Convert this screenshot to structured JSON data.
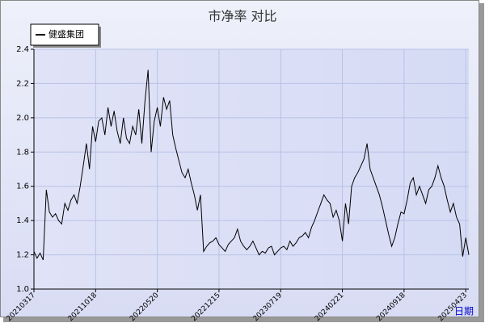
{
  "chart_data": {
    "type": "line",
    "title": "市净率 对比",
    "x_label": "日期",
    "categories": [
      "20210317",
      null,
      null,
      null,
      null,
      null,
      null,
      null,
      null,
      null,
      null,
      null,
      null,
      null,
      null,
      null,
      null,
      null,
      null,
      null,
      "20211018",
      null,
      null,
      null,
      null,
      null,
      null,
      null,
      null,
      null,
      null,
      null,
      null,
      null,
      null,
      null,
      null,
      null,
      null,
      null,
      "20220520",
      null,
      null,
      null,
      null,
      null,
      null,
      null,
      null,
      null,
      null,
      null,
      null,
      null,
      null,
      null,
      null,
      null,
      null,
      null,
      "20221215",
      null,
      null,
      null,
      null,
      null,
      null,
      null,
      null,
      null,
      null,
      null,
      null,
      null,
      null,
      null,
      null,
      null,
      null,
      null,
      "20230719",
      null,
      null,
      null,
      null,
      null,
      null,
      null,
      null,
      null,
      null,
      null,
      null,
      null,
      null,
      null,
      null,
      null,
      null,
      null,
      "20240221",
      null,
      null,
      null,
      null,
      null,
      null,
      null,
      null,
      null,
      null,
      null,
      null,
      null,
      null,
      null,
      null,
      null,
      null,
      null,
      "20240918",
      null,
      null,
      null,
      null,
      null,
      null,
      null,
      null,
      null,
      null,
      null,
      null,
      null,
      null,
      null,
      null,
      null,
      null,
      null,
      "20250423",
      null
    ],
    "series": [
      {
        "name": "健盛集团",
        "color": "#000000",
        "values": [
          1.22,
          1.18,
          1.21,
          1.17,
          1.58,
          1.45,
          1.42,
          1.44,
          1.4,
          1.38,
          1.5,
          1.46,
          1.52,
          1.55,
          1.5,
          1.6,
          1.72,
          1.85,
          1.7,
          1.95,
          1.86,
          1.98,
          2.0,
          1.9,
          2.06,
          1.95,
          2.04,
          1.92,
          1.85,
          2.0,
          1.88,
          1.85,
          1.95,
          1.9,
          2.05,
          1.85,
          2.1,
          2.28,
          1.8,
          1.98,
          2.06,
          1.95,
          2.12,
          2.05,
          2.1,
          1.9,
          1.82,
          1.75,
          1.68,
          1.65,
          1.7,
          1.62,
          1.55,
          1.46,
          1.55,
          1.22,
          1.25,
          1.27,
          1.28,
          1.3,
          1.26,
          1.24,
          1.22,
          1.26,
          1.28,
          1.3,
          1.35,
          1.28,
          1.25,
          1.23,
          1.25,
          1.28,
          1.24,
          1.2,
          1.22,
          1.21,
          1.24,
          1.25,
          1.2,
          1.22,
          1.24,
          1.25,
          1.23,
          1.28,
          1.25,
          1.27,
          1.3,
          1.31,
          1.33,
          1.3,
          1.36,
          1.4,
          1.45,
          1.5,
          1.55,
          1.52,
          1.5,
          1.42,
          1.46,
          1.4,
          1.28,
          1.5,
          1.38,
          1.6,
          1.65,
          1.68,
          1.72,
          1.76,
          1.85,
          1.7,
          1.65,
          1.6,
          1.55,
          1.48,
          1.4,
          1.32,
          1.25,
          1.3,
          1.38,
          1.45,
          1.44,
          1.52,
          1.62,
          1.65,
          1.55,
          1.6,
          1.55,
          1.5,
          1.58,
          1.6,
          1.65,
          1.72,
          1.65,
          1.6,
          1.52,
          1.45,
          1.5,
          1.42,
          1.38,
          1.19,
          1.3,
          1.2
        ]
      }
    ],
    "ylim": [
      1.0,
      2.4
    ],
    "yticks": [
      {
        "value": 1,
        "label": "1.0"
      },
      1.2,
      1.4,
      1.6,
      1.8,
      {
        "value": 2,
        "label": "2.0"
      },
      2.2,
      2.4
    ],
    "grid": true,
    "legend": "top-left"
  }
}
